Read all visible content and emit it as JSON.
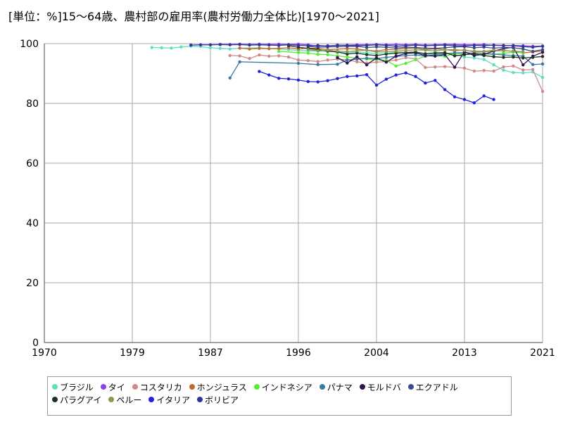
{
  "chart_data": {
    "type": "line",
    "title": "[単位：%]15～64歳、農村部の雇用率(農村労働力全体比)[1970～2021]",
    "xlim": [
      1970,
      2021
    ],
    "ylim": [
      0,
      100
    ],
    "x_ticks": [
      "1970",
      "1979",
      "1987",
      "1996",
      "2004",
      "2013",
      "2021"
    ],
    "y_ticks": [
      "0",
      "20",
      "40",
      "60",
      "80",
      "100"
    ],
    "grid": true,
    "legend_position": "bottom",
    "series": [
      {
        "name": "ブラジル",
        "color": "#5ee0c0",
        "x": [
          1981,
          1982,
          1983,
          1984,
          1985,
          1986,
          1987,
          1988,
          1989,
          1990,
          1992,
          1993,
          1995,
          1996,
          1997,
          1998,
          1999,
          2001,
          2002,
          2003,
          2004,
          2005,
          2006,
          2007,
          2008,
          2009,
          2011,
          2012,
          2013,
          2014,
          2015,
          2016,
          2017,
          2018,
          2019,
          2020,
          2021
        ],
        "y": [
          98.7,
          98.6,
          98.5,
          98.9,
          99.1,
          99.0,
          98.6,
          98.4,
          98.2,
          98.5,
          98.6,
          98.3,
          98.0,
          97.7,
          97.6,
          97.5,
          97.4,
          96.9,
          97.2,
          96.9,
          96.6,
          96.8,
          97.2,
          97.0,
          97.2,
          96.3,
          96.8,
          96.4,
          95.5,
          95.2,
          94.7,
          92.9,
          91.1,
          90.3,
          90.2,
          90.5,
          88.7
        ]
      },
      {
        "name": "タイ",
        "color": "#8844ee",
        "x": [
          1988,
          1989,
          1990,
          1991,
          1992,
          1993,
          1994,
          1995,
          1996,
          1997,
          1998,
          1999,
          2000,
          2001,
          2002,
          2003,
          2004,
          2005,
          2006,
          2007,
          2008,
          2009,
          2010,
          2011,
          2012,
          2013,
          2014,
          2015,
          2016,
          2017,
          2018,
          2019,
          2020,
          2021
        ],
        "y": [
          99.7,
          99.7,
          99.8,
          99.7,
          99.8,
          99.7,
          99.8,
          99.7,
          99.8,
          99.6,
          99.2,
          99.3,
          99.4,
          99.5,
          99.6,
          99.6,
          99.7,
          99.6,
          99.7,
          99.6,
          99.7,
          99.5,
          99.6,
          99.7,
          99.7,
          99.6,
          99.6,
          99.7,
          99.4,
          99.3,
          99.4,
          99.3,
          99.1,
          99.2
        ]
      },
      {
        "name": "コスタリカ",
        "color": "#d08888",
        "x": [
          1989,
          1990,
          1991,
          1992,
          1993,
          1994,
          1995,
          1996,
          1997,
          1998,
          1999,
          2000,
          2001,
          2002,
          2003,
          2004,
          2005,
          2006,
          2007,
          2008,
          2009,
          2010,
          2011,
          2012,
          2013,
          2014,
          2015,
          2016,
          2017,
          2018,
          2019,
          2020,
          2021
        ],
        "y": [
          96.0,
          95.9,
          95.0,
          96.2,
          95.8,
          95.9,
          95.5,
          94.5,
          94.3,
          94.0,
          94.5,
          94.8,
          94.6,
          93.9,
          93.5,
          93.8,
          94.0,
          94.5,
          95.3,
          94.9,
          92.0,
          92.2,
          92.3,
          92.1,
          91.8,
          90.8,
          91.0,
          90.8,
          92.2,
          92.5,
          91.2,
          91.3,
          84.0
        ]
      },
      {
        "name": "ホンジュラス",
        "color": "#c06828",
        "x": [
          1990,
          1991,
          1992,
          1993,
          1994,
          1995,
          1996,
          1997,
          1998,
          1999,
          2001,
          2002,
          2003,
          2004,
          2005,
          2006,
          2007,
          2008,
          2009,
          2010,
          2011,
          2012,
          2013,
          2014,
          2015,
          2016,
          2017,
          2018,
          2019,
          2020,
          2021
        ],
        "y": [
          98.5,
          98.2,
          98.4,
          98.3,
          98.4,
          98.6,
          98.2,
          98.5,
          98.4,
          98.0,
          98.3,
          98.2,
          97.8,
          97.5,
          98.0,
          98.1,
          98.4,
          98.5,
          98.0,
          98.3,
          98.0,
          97.6,
          97.9,
          97.2,
          97.3,
          97.5,
          97.7,
          97.4,
          96.9,
          97.2,
          97.6
        ]
      },
      {
        "name": "インドネシア",
        "color": "#55ee33",
        "x": [
          1994,
          1996,
          1997,
          1998,
          1999,
          2000,
          2001,
          2002,
          2003,
          2004,
          2005,
          2006,
          2007,
          2008,
          2009,
          2010,
          2011,
          2012,
          2013,
          2014,
          2015,
          2016,
          2017,
          2018,
          2019
        ],
        "y": [
          97.4,
          97.0,
          96.8,
          96.4,
          96.3,
          95.9,
          95.5,
          95.2,
          94.8,
          94.6,
          94.4,
          92.5,
          93.4,
          94.6,
          95.8,
          96.0,
          95.7,
          96.8,
          96.5,
          96.4,
          96.5,
          96.4,
          96.8,
          97.1,
          97.0
        ]
      },
      {
        "name": "パナマ",
        "color": "#3a7aa0",
        "x": [
          1989,
          1990,
          1996,
          1998,
          2000,
          2001,
          2002,
          2003,
          2004,
          2005,
          2006,
          2007,
          2008,
          2009,
          2010,
          2011,
          2012,
          2013,
          2014,
          2015,
          2016,
          2017,
          2018,
          2019,
          2020,
          2021
        ],
        "y": [
          88.5,
          93.9,
          93.4,
          93.0,
          93.1,
          94.5,
          94.8,
          95.1,
          95.0,
          95.4,
          95.7,
          96.0,
          96.2,
          95.8,
          96.3,
          96.6,
          96.9,
          97.0,
          96.8,
          96.7,
          96.5,
          96.2,
          96.0,
          95.8,
          93.0,
          93.2
        ]
      },
      {
        "name": "モルドバ",
        "color": "#331155",
        "x": [
          2000,
          2001,
          2002,
          2003,
          2004,
          2005,
          2006,
          2007,
          2008,
          2009,
          2010,
          2011,
          2012,
          2013,
          2014,
          2015,
          2016,
          2017,
          2018,
          2019,
          2020,
          2021
        ],
        "y": [
          95.3,
          93.5,
          95.6,
          92.9,
          95.2,
          93.8,
          95.8,
          96.7,
          96.9,
          96.0,
          95.8,
          96.3,
          92.1,
          97.3,
          96.0,
          96.4,
          97.5,
          98.3,
          98.8,
          92.9,
          95.8,
          97.1
        ]
      },
      {
        "name": "エクアドル",
        "color": "#3a4a8a",
        "x": [
          1997,
          1998,
          1999,
          2000,
          2001,
          2002,
          2003,
          2004,
          2005,
          2006,
          2007,
          2008,
          2009,
          2010,
          2011,
          2012,
          2013,
          2014,
          2015,
          2016,
          2017,
          2018,
          2019,
          2020,
          2021
        ],
        "y": [
          99.1,
          98.8,
          98.9,
          99.0,
          99.1,
          99.1,
          98.7,
          98.9,
          98.8,
          98.5,
          98.8,
          98.7,
          98.5,
          98.4,
          98.6,
          98.9,
          99.0,
          98.6,
          98.8,
          98.5,
          98.7,
          98.6,
          98.2,
          97.4,
          98.0
        ]
      },
      {
        "name": "パラグアイ",
        "color": "#223322",
        "x": [
          1995,
          1996,
          1997,
          1998,
          1999,
          2000,
          2001,
          2002,
          2003,
          2004,
          2005,
          2006,
          2007,
          2008,
          2009,
          2010,
          2011,
          2012,
          2013,
          2014,
          2015,
          2016,
          2017,
          2018,
          2019,
          2020,
          2021
        ],
        "y": [
          99.3,
          98.8,
          98.4,
          98.0,
          97.5,
          97.2,
          96.5,
          96.8,
          96.3,
          96.0,
          96.5,
          96.8,
          97.0,
          97.2,
          96.6,
          96.9,
          97.0,
          95.9,
          96.3,
          96.6,
          96.0,
          95.6,
          95.4,
          95.5,
          95.2,
          95.4,
          95.7
        ]
      },
      {
        "name": "ペルー",
        "color": "#889955",
        "x": [
          1997,
          1998,
          1999,
          2000,
          2001,
          2002,
          2003,
          2004,
          2005,
          2006,
          2007,
          2008,
          2009,
          2010,
          2011,
          2012,
          2013,
          2014,
          2015,
          2016,
          2017,
          2018,
          2019
        ],
        "y": [
          98.0,
          97.6,
          97.8,
          97.5,
          97.3,
          97.6,
          97.8,
          97.2,
          97.3,
          97.5,
          97.7,
          97.9,
          97.8,
          97.6,
          97.9,
          98.0,
          97.7,
          97.5,
          97.4,
          97.8,
          97.6,
          97.5,
          97.3
        ]
      },
      {
        "name": "イタリア",
        "color": "#2222dd",
        "x": [
          1992,
          1993,
          1994,
          1995,
          1996,
          1997,
          1998,
          1999,
          2000,
          2001,
          2002,
          2003,
          2004,
          2005,
          2006,
          2007,
          2008,
          2009,
          2010,
          2011,
          2012,
          2013,
          2014,
          2015,
          2016
        ],
        "y": [
          90.7,
          89.5,
          88.4,
          88.2,
          87.8,
          87.3,
          87.2,
          87.6,
          88.3,
          89.0,
          89.2,
          89.6,
          86.1,
          88.1,
          89.5,
          90.2,
          89.0,
          86.8,
          87.7,
          84.6,
          82.2,
          81.3,
          80.2,
          82.5,
          81.3
        ]
      },
      {
        "name": "ボリビア",
        "color": "#333399",
        "x": [
          1985,
          1986,
          1987,
          1988,
          1989,
          1990,
          1991,
          1992,
          1993,
          1994,
          1995,
          1996,
          1997,
          1998,
          1999,
          2000,
          2001,
          2002,
          2003,
          2004,
          2005,
          2006,
          2007,
          2008,
          2009,
          2010,
          2011,
          2012,
          2013,
          2014,
          2015,
          2016,
          2017,
          2018,
          2019,
          2020,
          2021
        ],
        "y": [
          99.5,
          99.6,
          99.6,
          99.7,
          99.6,
          99.7,
          99.5,
          99.6,
          99.5,
          99.4,
          99.6,
          99.4,
          99.3,
          99.4,
          99.2,
          99.5,
          99.4,
          99.3,
          99.4,
          99.6,
          99.4,
          99.1,
          99.3,
          99.5,
          99.3,
          99.4,
          99.5,
          99.3,
          99.2,
          99.4,
          99.3,
          99.5,
          99.4,
          99.3,
          99.0,
          98.8,
          99.1
        ]
      }
    ]
  }
}
